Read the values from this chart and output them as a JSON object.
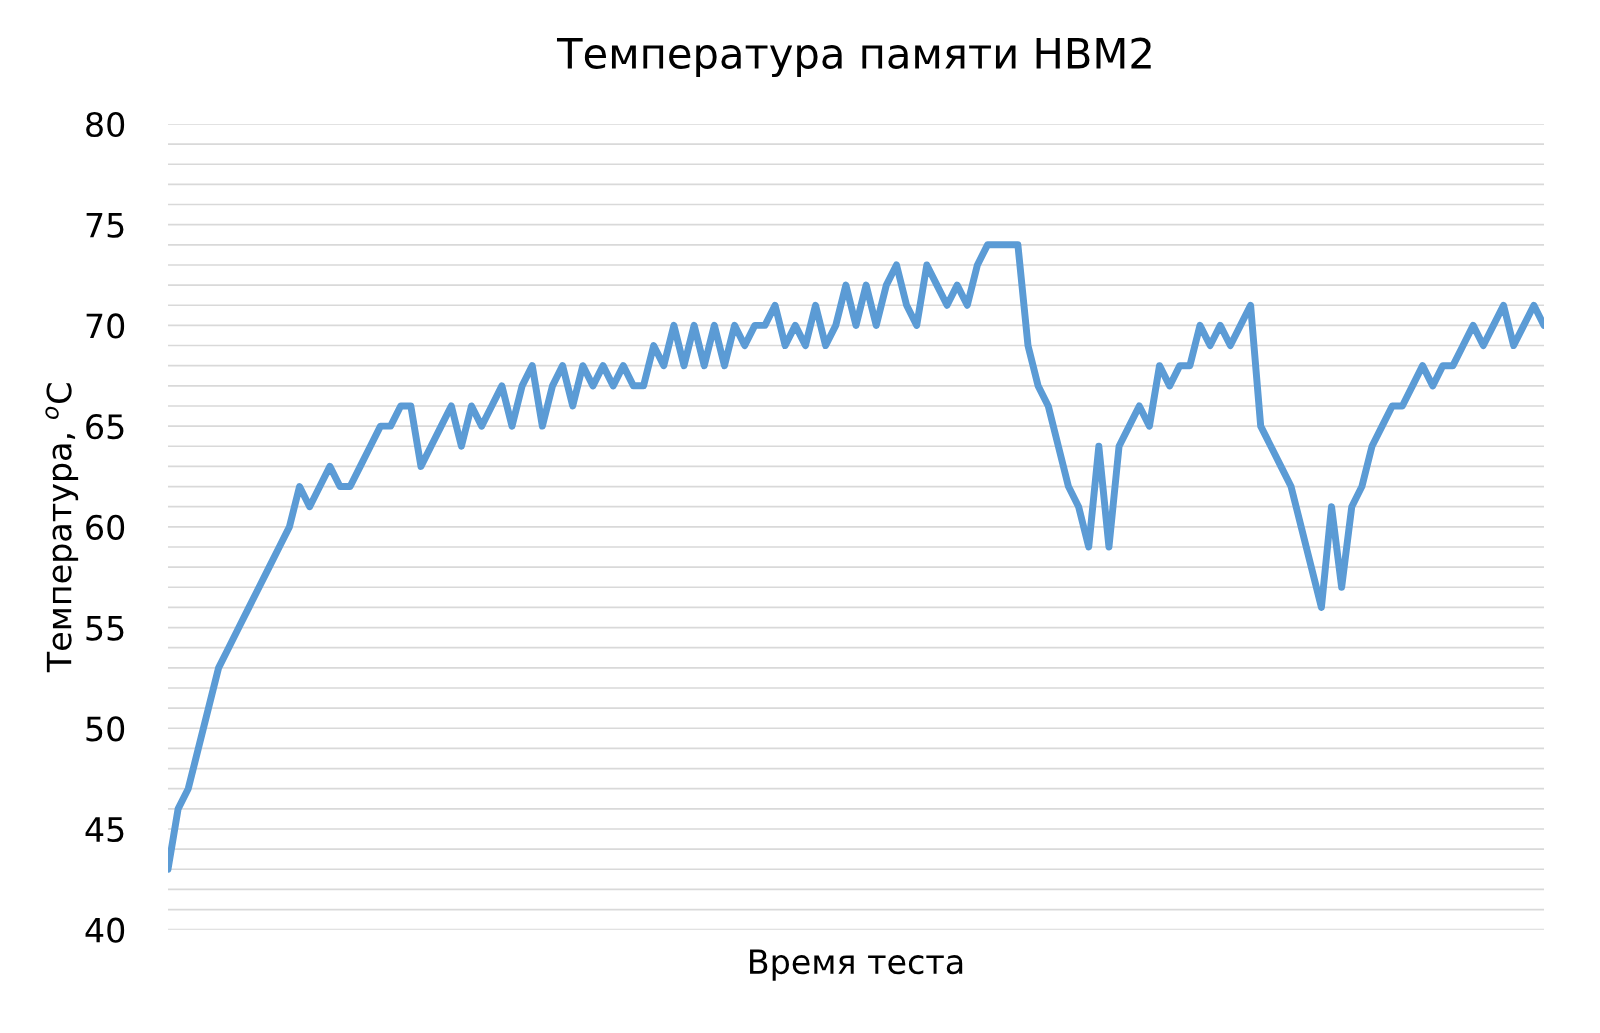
{
  "chart_data": {
    "type": "line",
    "title": "Температура памяти HBM2",
    "xlabel": "Время теста",
    "ylabel": "Температура, $^{o}$C",
    "categories": [
      null,
      null,
      null,
      null,
      null,
      null,
      null,
      null,
      null,
      null,
      null,
      null,
      null,
      null,
      null,
      null,
      null,
      null,
      null,
      null,
      null,
      null,
      null,
      null,
      null,
      null,
      null,
      null,
      null,
      null,
      null,
      null,
      null,
      null,
      null,
      null,
      null,
      null,
      null,
      null,
      null,
      null,
      null,
      null,
      null,
      null,
      null,
      null,
      null,
      null,
      null,
      null,
      null,
      null,
      null,
      null,
      null,
      null,
      null,
      null,
      null,
      null,
      null,
      null,
      null,
      null,
      null,
      null,
      null,
      null,
      null,
      null,
      null,
      null,
      null,
      null,
      null,
      null,
      null,
      null,
      null,
      null,
      null,
      null,
      null,
      null,
      null,
      null,
      null,
      null,
      null,
      null,
      null,
      null,
      null,
      null,
      null,
      null,
      null,
      null,
      null,
      null,
      null,
      null,
      null,
      null,
      null,
      null,
      null,
      null,
      null,
      null,
      null,
      null,
      null,
      null,
      null,
      null,
      null,
      null,
      null,
      null,
      null,
      null,
      null,
      null,
      null,
      null,
      null,
      null,
      null,
      null,
      null,
      null,
      null,
      null,
      null
    ],
    "series": [
      {
        "color": "#5b9bd5",
        "values": [
          43,
          46,
          47,
          49,
          51,
          53,
          54,
          55,
          56,
          57,
          58,
          59,
          60,
          62,
          61,
          62,
          63,
          62,
          62,
          63,
          64,
          65,
          65,
          66,
          66,
          63,
          64,
          65,
          66,
          64,
          66,
          65,
          66,
          67,
          65,
          67,
          68,
          65,
          67,
          68,
          66,
          68,
          67,
          68,
          67,
          68,
          67,
          67,
          69,
          68,
          70,
          68,
          70,
          68,
          70,
          68,
          70,
          69,
          70,
          70,
          71,
          69,
          70,
          69,
          71,
          69,
          70,
          72,
          70,
          72,
          70,
          72,
          73,
          71,
          70,
          73,
          72,
          71,
          72,
          71,
          73,
          74,
          74,
          74,
          74,
          69,
          67,
          66,
          64,
          62,
          61,
          59,
          64,
          59,
          64,
          65,
          66,
          65,
          68,
          67,
          68,
          68,
          70,
          69,
          70,
          69,
          70,
          71,
          65,
          64,
          63,
          62,
          60,
          58,
          56,
          61,
          57,
          61,
          62,
          64,
          65,
          66,
          66,
          67,
          68,
          67,
          68,
          68,
          69,
          70,
          69,
          70,
          71,
          69,
          70,
          71,
          70
        ]
      }
    ],
    "ylim": [
      40,
      80
    ],
    "yticks": [
      40,
      {
        "value": 41,
        "label": null
      },
      {
        "value": 42,
        "label": null
      },
      {
        "value": 43,
        "label": null
      },
      {
        "value": 44,
        "label": null
      },
      45,
      {
        "value": 46,
        "label": null
      },
      {
        "value": 47,
        "label": null
      },
      {
        "value": 48,
        "label": null
      },
      {
        "value": 49,
        "label": null
      },
      50,
      {
        "value": 51,
        "label": null
      },
      {
        "value": 52,
        "label": null
      },
      {
        "value": 53,
        "label": null
      },
      {
        "value": 54,
        "label": null
      },
      55,
      {
        "value": 56,
        "label": null
      },
      {
        "value": 57,
        "label": null
      },
      {
        "value": 58,
        "label": null
      },
      {
        "value": 59,
        "label": null
      },
      60,
      {
        "value": 61,
        "label": null
      },
      {
        "value": 62,
        "label": null
      },
      {
        "value": 63,
        "label": null
      },
      {
        "value": 64,
        "label": null
      },
      65,
      {
        "value": 66,
        "label": null
      },
      {
        "value": 67,
        "label": null
      },
      {
        "value": 68,
        "label": null
      },
      {
        "value": 69,
        "label": null
      },
      70,
      {
        "value": 71,
        "label": null
      },
      {
        "value": 72,
        "label": null
      },
      {
        "value": 73,
        "label": null
      },
      {
        "value": 74,
        "label": null
      },
      75,
      {
        "value": 76,
        "label": null
      },
      {
        "value": 77,
        "label": null
      },
      {
        "value": 78,
        "label": null
      },
      {
        "value": 79,
        "label": null
      },
      80
    ],
    "grid": "y",
    "legend": false,
    "line_style": "solid",
    "marker": "none"
  }
}
